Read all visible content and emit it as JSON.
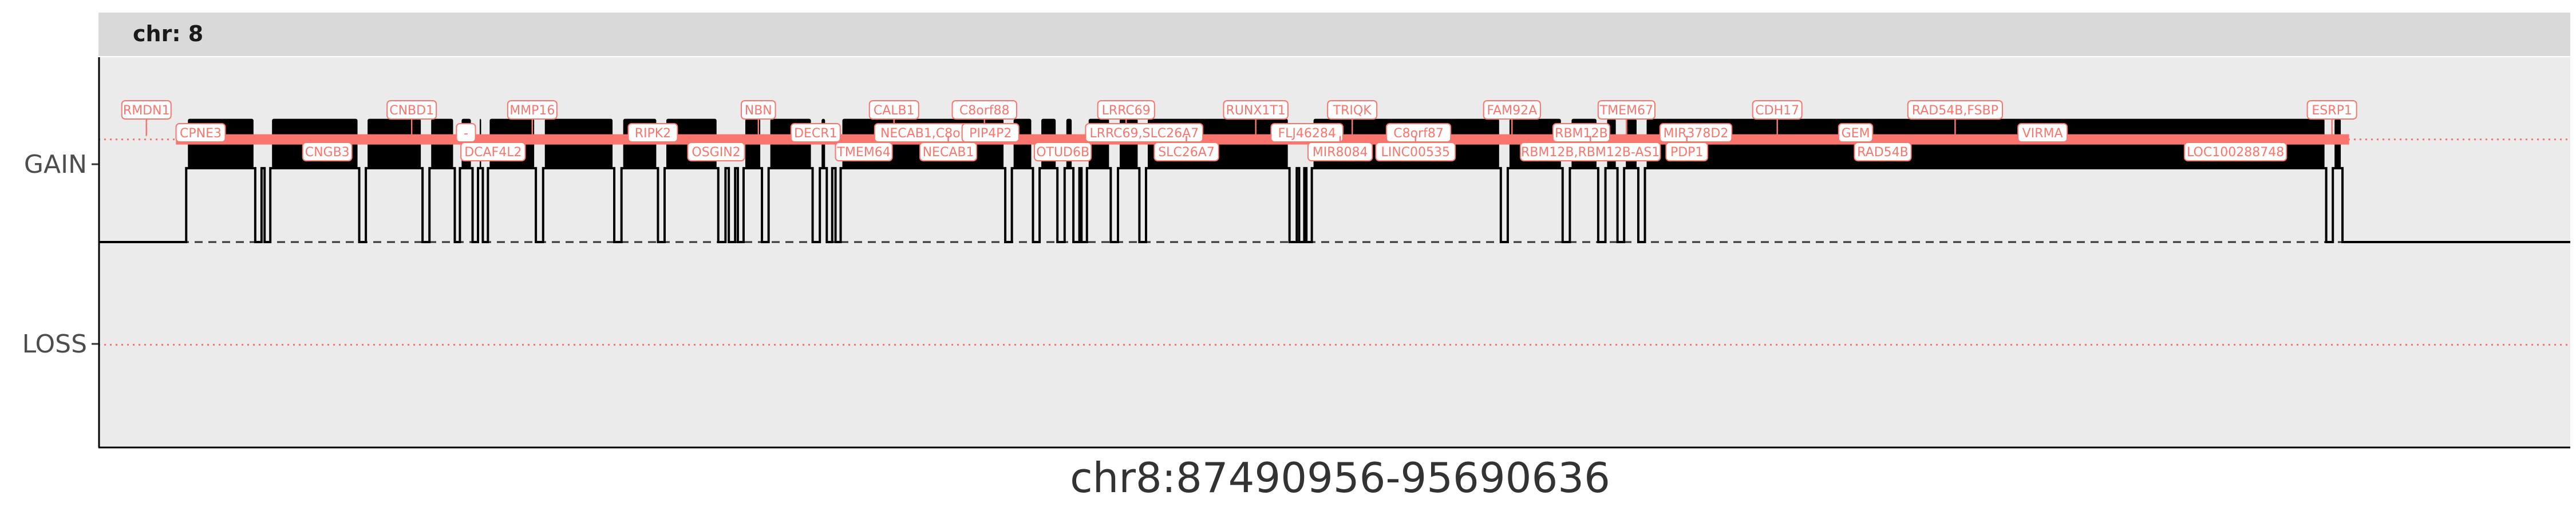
{
  "chart_data": {
    "type": "line",
    "strip": "chr: 8",
    "xlabel": "chr8:87490956-95690636",
    "ylabel": "",
    "y_categories": [
      "LOSS",
      "GAIN"
    ],
    "ylim": [
      -2,
      1.8
    ],
    "xlim": [
      87490956,
      95690636
    ],
    "baseline": 0,
    "segment_level": 1,
    "noise_band": [
      0.72,
      1.2
    ],
    "dips": [
      [
        87748000,
        87782000
      ],
      [
        88011000,
        88032000
      ],
      [
        88042000,
        88061000
      ],
      [
        88356000,
        88378000
      ],
      [
        88566000,
        88589000
      ],
      [
        88673000,
        88690000
      ],
      [
        88732000,
        88750000
      ],
      [
        88766000,
        88783000
      ],
      [
        88942000,
        88966000
      ],
      [
        89202000,
        89226000
      ],
      [
        89347000,
        89369000
      ],
      [
        89547000,
        89571000
      ],
      [
        89582000,
        89603000
      ],
      [
        89612000,
        89631000
      ],
      [
        89692000,
        89714000
      ],
      [
        89860000,
        89884000
      ],
      [
        89907000,
        89925000
      ],
      [
        89936000,
        89953000
      ],
      [
        90499000,
        90521000
      ],
      [
        90591000,
        90613000
      ],
      [
        90672000,
        90696000
      ],
      [
        90725000,
        90745000
      ],
      [
        90752000,
        90770000
      ],
      [
        90849000,
        90873000
      ],
      [
        90944000,
        90966000
      ],
      [
        91442000,
        91466000
      ],
      [
        91474000,
        91491000
      ],
      [
        91498000,
        91516000
      ],
      [
        92143000,
        92166000
      ],
      [
        92348000,
        92372000
      ],
      [
        92466000,
        92490000
      ],
      [
        92530000,
        92552000
      ],
      [
        92599000,
        92621000
      ],
      [
        94881000,
        94903000
      ],
      [
        94935000,
        94957000
      ]
    ],
    "genes": [
      {
        "label": "RMDN1",
        "x": 87650000
      },
      {
        "label": "CPNE3",
        "x": 87830000
      },
      {
        "label": "CNGB3",
        "x": 88250000
      },
      {
        "label": "CNBD1",
        "x": 88530000
      },
      {
        "label": "-",
        "x": 88710000
      },
      {
        "label": "DCAF4L2",
        "x": 88800000
      },
      {
        "label": "MMP16",
        "x": 88930000
      },
      {
        "label": "RIPK2",
        "x": 89330000
      },
      {
        "label": "OSGIN2",
        "x": 89540000
      },
      {
        "label": "NBN",
        "x": 89680000
      },
      {
        "label": "DECR1",
        "x": 89870000
      },
      {
        "label": "TMEM64",
        "x": 90030000
      },
      {
        "label": "CALB1",
        "x": 90130000
      },
      {
        "label": "NECAB1,C8orf88",
        "x": 90260000
      },
      {
        "label": "NECAB1",
        "x": 90310000
      },
      {
        "label": "C8orf88",
        "x": 90430000
      },
      {
        "label": "PIP4P2",
        "x": 90450000
      },
      {
        "label": "OTUD6B",
        "x": 90690000
      },
      {
        "label": "LRRC69",
        "x": 90900000
      },
      {
        "label": "LRRC69,SLC26A7",
        "x": 90960000
      },
      {
        "label": "SLC26A7",
        "x": 91100000
      },
      {
        "label": "RUNX1T1",
        "x": 91330000
      },
      {
        "label": "FLJ46284",
        "x": 91500000
      },
      {
        "label": "MIR8084",
        "x": 91610000
      },
      {
        "label": "TRIQK",
        "x": 91650000
      },
      {
        "label": "C8orf87",
        "x": 91870000
      },
      {
        "label": "LINC00535",
        "x": 91860000
      },
      {
        "label": "FAM92A",
        "x": 92180000
      },
      {
        "label": "RBM12B",
        "x": 92410000
      },
      {
        "label": "RBM12B,RBM12B-AS1",
        "x": 92440000
      },
      {
        "label": "TMEM67",
        "x": 92560000
      },
      {
        "label": "MIR378D2",
        "x": 92790000
      },
      {
        "label": "PDP1",
        "x": 92760000
      },
      {
        "label": "CDH17",
        "x": 93060000
      },
      {
        "label": "GEM",
        "x": 93320000
      },
      {
        "label": "RAD54B",
        "x": 93410000
      },
      {
        "label": "RAD54B,FSBP",
        "x": 93650000
      },
      {
        "label": "VIRMA",
        "x": 93940000
      },
      {
        "label": "LOC100288748",
        "x": 94580000
      },
      {
        "label": "ESRP1",
        "x": 94900000
      }
    ]
  }
}
